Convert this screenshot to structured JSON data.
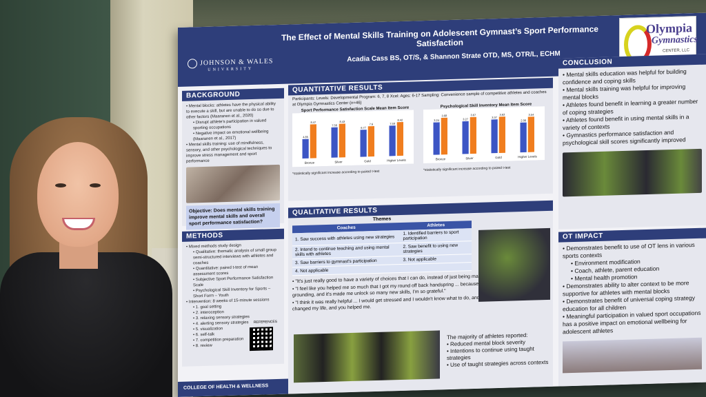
{
  "poster": {
    "title": "The Effect of Mental Skills Training on Adolescent Gymnast’s Sport Performance Satisfaction",
    "authors": "Acadia Cass BS, OT/S, & Shannon Strate OTD, MS, OTR/L, ECHM",
    "university": "JOHNSON & WALES",
    "university_sub": "UNIVERSITY",
    "logo": {
      "name": "Olympia",
      "sub": "Gymnastics",
      "center": "CENTER, LLC"
    },
    "footer": "COLLEGE OF HEALTH & WELLNESS"
  },
  "background": {
    "heading": "BACKGROUND",
    "items": [
      "Mental blocks: athletes have the physical ability to execute a skill, but are unable to do so due to other factors (Maaranen et al., 2020)",
      "Disrupt athlete's participation in valued sporting occupations",
      "Negative impact on emotional wellbeing (Maaranen et al., 2017)",
      "Mental skills training: use of mindfulness, sensory, and other psychological techniques to improve stress management and sport performance"
    ],
    "objective": "Objective: Does mental skills training improve mental skills and overall sport performance satisfaction?"
  },
  "methods": {
    "heading": "METHODS",
    "items": [
      "Mixed methods study design",
      "Qualitative: thematic analysis of small group semi-structured interviews with athletes and coaches",
      "Quantitative: paired t-test of mean assessment scores",
      "Subjective Sport Performance Satisfaction Scale",
      "Psychological Skill Inventory for Sports – Short Form – Youth",
      "Intervention: 8 weeks of 15-minute sessions",
      "1. goal setting",
      "2. interoception",
      "3. relaxing sensory strategies",
      "4. alerting sensory strategies",
      "5. visualization",
      "6. self-talk",
      "7. competition preparation",
      "8. review"
    ],
    "references": "REFERENCES"
  },
  "quantitative": {
    "heading": "QUANTITATIVE RESULTS",
    "participants": "Participants:",
    "levels": "Levels:",
    "levels_value": "Developmental Program: 6, 7, 8",
    "xcel": "Xcel:",
    "ages": "Ages:",
    "ages_value": "6-17",
    "sampling": "Sampling:",
    "sampling_value": "Convenience sample of competitive athletes and coaches at Olympia Gymnastics Center (n=46)",
    "footnote": "*statistically significant increase according to paired t-test",
    "n_label": "n=46"
  },
  "chart_data": [
    {
      "type": "bar",
      "title": "Sport Performance Satisfaction Scale Mean Item Score",
      "categories": [
        "Bronze",
        "Silver",
        "Gold",
        "Higher Levels"
      ],
      "series": [
        {
          "name": "Pretest",
          "values": [
            4.85,
            7.56,
            6.77,
            7.59
          ]
        },
        {
          "name": "Posttest",
          "values": [
            8.47,
            8.43,
            7.6,
            8.42
          ]
        }
      ],
      "colors": [
        "#3c55c4",
        "#f07d1e"
      ],
      "ylim": [
        0,
        10
      ]
    },
    {
      "type": "bar",
      "title": "Psychological Skill Inventory Mean Item Score",
      "categories": [
        "Bronze",
        "Silver",
        "Gold",
        "Higher Levels"
      ],
      "series": [
        {
          "name": "Pretest",
          "values": [
            3.24,
            3.27,
            3.37,
            2.98
          ]
        },
        {
          "name": "Posttest",
          "values": [
            3.68,
            3.67,
            3.63,
            3.54
          ]
        }
      ],
      "colors": [
        "#3c55c4",
        "#f07d1e"
      ],
      "ylim": [
        0,
        4
      ]
    }
  ],
  "qualitative": {
    "heading": "QUALITATIVE RESULTS",
    "themes_title": "Themes",
    "col_coaches": "Coaches",
    "col_athletes": "Athletes",
    "rows": [
      [
        "1. Saw success with athletes using new strategies",
        "1. Identified barriers to sport participation"
      ],
      [
        "2. Intend to continue teaching and using mental skills with athletes",
        "2. Saw benefit to using new strategies"
      ],
      [
        "3. Saw barriers to gymnast's participation",
        "3. Not applicable"
      ],
      [
        "4. Not applicable",
        ""
      ]
    ],
    "quotes": [
      "\"It's just really good to have a variety of choices that I can do, instead of just being mad at myself\"",
      "\"I feel like you helped me so much that I got my round off back handspring ... because I've been doing breathing, and grounding, and it's made me unlock so many new skills, I'm so grateful.\"",
      "\"I think it was really helpful ... I would get stressed and I wouldn't know what to do, and then when you came, you changed my life, and you helped me."
    ],
    "majority_intro": "The majority of athletes reported:",
    "majority_items": [
      "Reduced mental block severity",
      "Intentions to continue using taught strategies",
      "Use of taught strategies across contexts"
    ]
  },
  "conclusion": {
    "heading": "CONCLUSION",
    "items": [
      "Mental skills education was helpful for building confidence and coping skills",
      "Mental skills training was helpful for improving mental blocks",
      "Athletes found benefit in learning a greater number of coping strategies",
      "Athletes found benefit in using mental skills in a variety of contexts",
      "Gymnastics performance satisfaction and psychological skill scores significantly improved"
    ]
  },
  "ot_impact": {
    "heading": "OT IMPACT",
    "items": [
      "Demonstrates benefit to use of OT lens in various sports contexts",
      "Environment modification",
      "Coach, athlete, parent education",
      "Mental health promotion",
      "Demonstrates ability to alter context to be more supportive for athletes with mental blocks",
      "Demonstrates benefit of universal coping strategy education for all children",
      "Meaningful participation in valued sport occupations has a positive impact on emotional wellbeing for adolescent athletes"
    ]
  }
}
